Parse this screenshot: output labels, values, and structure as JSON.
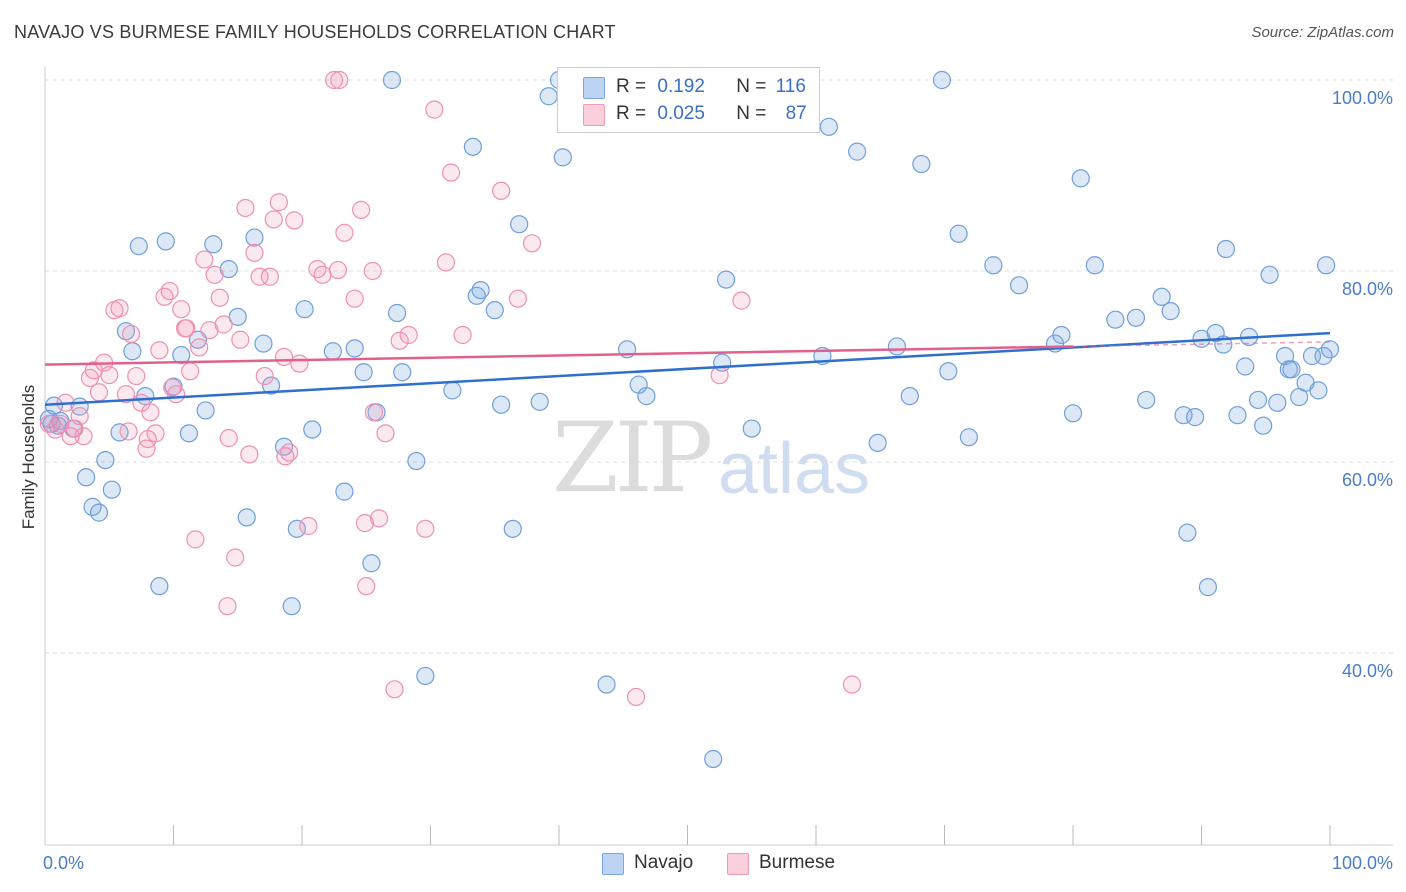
{
  "title": "NAVAJO VS BURMESE FAMILY HOUSEHOLDS CORRELATION CHART",
  "source": "Source: ZipAtlas.com",
  "watermark": {
    "zip": "ZIP",
    "atlas": "atlas"
  },
  "legend": {
    "rows": [
      {
        "r_label": "R =",
        "r_value": "0.192",
        "n_label": "N =",
        "n_value": "116",
        "color": "#7aa5e0",
        "fill": "#bcd3f3"
      },
      {
        "r_label": "R =",
        "r_value": "0.025",
        "n_label": "N =",
        "n_value": "87",
        "color": "#f09ab6",
        "fill": "#fbcfdc"
      }
    ]
  },
  "bottom_legend": [
    "Navajo",
    "Burmese"
  ],
  "chart_data": {
    "type": "scatter",
    "title": "NAVAJO VS BURMESE FAMILY HOUSEHOLDS CORRELATION CHART",
    "xlabel": "",
    "ylabel": "Family Households",
    "xlim": [
      0,
      100
    ],
    "ylim": [
      20,
      102
    ],
    "x_tick_labels": [
      "0.0%",
      "100.0%"
    ],
    "y_tick_labels": [
      "40.0%",
      "60.0%",
      "80.0%",
      "100.0%"
    ],
    "y_ticks": [
      40,
      60,
      80,
      100
    ],
    "grid": true,
    "colors": {
      "navajo_stroke": "#6f9fdc",
      "navajo_fill": "rgba(120,165,225,0.25)",
      "navajo_line": "#2f6fce",
      "burmese_stroke": "#ef90b0",
      "burmese_fill": "rgba(240,150,180,0.22)",
      "burmese_line": "#e0608e"
    },
    "series": [
      {
        "name": "Navajo",
        "trend": {
          "x": [
            0,
            100
          ],
          "y": [
            66.0,
            73.5
          ]
        },
        "points": [
          [
            0.3,
            64.5
          ],
          [
            0.5,
            64.0
          ],
          [
            0.7,
            65.9
          ],
          [
            1.0,
            63.8
          ],
          [
            1.2,
            64.3
          ],
          [
            2.2,
            63.5
          ],
          [
            2.7,
            65.8
          ],
          [
            3.2,
            58.4
          ],
          [
            3.7,
            55.3
          ],
          [
            4.2,
            54.7
          ],
          [
            4.7,
            60.2
          ],
          [
            5.2,
            57.1
          ],
          [
            5.8,
            63.1
          ],
          [
            6.3,
            73.7
          ],
          [
            6.8,
            71.6
          ],
          [
            7.3,
            82.6
          ],
          [
            7.8,
            66.9
          ],
          [
            8.9,
            47.0
          ],
          [
            9.4,
            83.1
          ],
          [
            10.0,
            67.9
          ],
          [
            10.6,
            71.2
          ],
          [
            11.2,
            63.0
          ],
          [
            11.9,
            72.8
          ],
          [
            12.5,
            65.4
          ],
          [
            13.1,
            82.8
          ],
          [
            14.3,
            80.2
          ],
          [
            15.0,
            75.2
          ],
          [
            15.7,
            54.2
          ],
          [
            16.3,
            83.5
          ],
          [
            17.0,
            72.4
          ],
          [
            17.6,
            68.0
          ],
          [
            18.6,
            61.6
          ],
          [
            19.2,
            44.9
          ],
          [
            19.6,
            53.0
          ],
          [
            20.2,
            76.0
          ],
          [
            20.8,
            63.4
          ],
          [
            22.4,
            71.6
          ],
          [
            23.3,
            56.9
          ],
          [
            24.1,
            71.9
          ],
          [
            24.8,
            69.4
          ],
          [
            25.4,
            49.4
          ],
          [
            25.8,
            65.2
          ],
          [
            27.0,
            100.0
          ],
          [
            27.4,
            75.6
          ],
          [
            27.8,
            69.4
          ],
          [
            28.9,
            60.1
          ],
          [
            29.6,
            37.6
          ],
          [
            31.7,
            67.5
          ],
          [
            33.6,
            77.4
          ],
          [
            33.9,
            78.0
          ],
          [
            35.0,
            75.9
          ],
          [
            35.5,
            66.0
          ],
          [
            36.4,
            53.0
          ],
          [
            36.9,
            84.9
          ],
          [
            38.5,
            66.3
          ],
          [
            39.2,
            98.3
          ],
          [
            40.3,
            91.9
          ],
          [
            43.7,
            36.7
          ],
          [
            45.3,
            71.8
          ],
          [
            46.2,
            68.1
          ],
          [
            46.8,
            66.9
          ],
          [
            52.0,
            28.9
          ],
          [
            52.7,
            70.4
          ],
          [
            53.0,
            79.1
          ],
          [
            55.0,
            63.5
          ],
          [
            57.8,
            100.0
          ],
          [
            60.5,
            71.1
          ],
          [
            61.0,
            95.1
          ],
          [
            63.2,
            92.5
          ],
          [
            64.8,
            62.0
          ],
          [
            66.3,
            72.1
          ],
          [
            67.3,
            66.9
          ],
          [
            68.2,
            91.2
          ],
          [
            69.8,
            100.0
          ],
          [
            70.3,
            69.5
          ],
          [
            71.1,
            83.9
          ],
          [
            71.9,
            62.6
          ],
          [
            73.8,
            80.6
          ],
          [
            75.8,
            78.5
          ],
          [
            78.6,
            72.4
          ],
          [
            79.1,
            73.3
          ],
          [
            80.0,
            65.1
          ],
          [
            80.6,
            89.7
          ],
          [
            81.7,
            80.6
          ],
          [
            83.3,
            74.9
          ],
          [
            84.9,
            75.1
          ],
          [
            85.7,
            66.5
          ],
          [
            86.9,
            77.3
          ],
          [
            87.6,
            75.8
          ],
          [
            88.6,
            64.9
          ],
          [
            88.9,
            52.6
          ],
          [
            89.5,
            64.7
          ],
          [
            90.0,
            72.9
          ],
          [
            90.5,
            46.9
          ],
          [
            91.1,
            73.5
          ],
          [
            91.7,
            72.3
          ],
          [
            91.9,
            82.3
          ],
          [
            92.8,
            64.9
          ],
          [
            93.4,
            70.0
          ],
          [
            93.7,
            73.1
          ],
          [
            94.4,
            66.5
          ],
          [
            94.8,
            63.8
          ],
          [
            95.3,
            79.6
          ],
          [
            95.9,
            66.2
          ],
          [
            96.5,
            71.1
          ],
          [
            96.8,
            69.7
          ],
          [
            97.0,
            69.7
          ],
          [
            97.6,
            66.8
          ],
          [
            98.1,
            68.3
          ],
          [
            98.6,
            71.1
          ],
          [
            99.1,
            67.5
          ],
          [
            99.5,
            71.1
          ],
          [
            99.7,
            80.6
          ],
          [
            100.0,
            71.8
          ],
          [
            33.3,
            93.0
          ],
          [
            40.0,
            100.0
          ]
        ]
      },
      {
        "name": "Burmese",
        "trend": {
          "x": [
            0,
            80
          ],
          "y": [
            70.2,
            72.1
          ]
        },
        "points": [
          [
            0.3,
            64.0
          ],
          [
            0.8,
            63.4
          ],
          [
            1.2,
            64.0
          ],
          [
            1.6,
            66.2
          ],
          [
            2.0,
            62.7
          ],
          [
            2.3,
            63.5
          ],
          [
            2.7,
            64.8
          ],
          [
            3.0,
            62.7
          ],
          [
            3.5,
            68.8
          ],
          [
            3.8,
            69.6
          ],
          [
            4.2,
            67.3
          ],
          [
            4.6,
            70.4
          ],
          [
            5.0,
            69.1
          ],
          [
            5.4,
            75.9
          ],
          [
            5.8,
            76.1
          ],
          [
            6.3,
            67.1
          ],
          [
            6.7,
            73.4
          ],
          [
            7.1,
            69.0
          ],
          [
            7.5,
            66.2
          ],
          [
            7.9,
            61.4
          ],
          [
            8.2,
            65.2
          ],
          [
            8.6,
            63.0
          ],
          [
            8.9,
            71.7
          ],
          [
            9.3,
            77.3
          ],
          [
            9.7,
            77.9
          ],
          [
            10.2,
            67.1
          ],
          [
            10.6,
            76.0
          ],
          [
            10.9,
            74.0
          ],
          [
            11.3,
            69.5
          ],
          [
            11.7,
            51.9
          ],
          [
            12.0,
            72.0
          ],
          [
            12.4,
            81.2
          ],
          [
            12.8,
            73.8
          ],
          [
            13.2,
            79.6
          ],
          [
            13.6,
            77.2
          ],
          [
            13.9,
            74.4
          ],
          [
            14.3,
            62.5
          ],
          [
            14.8,
            50.0
          ],
          [
            15.2,
            72.8
          ],
          [
            15.6,
            86.6
          ],
          [
            15.9,
            60.8
          ],
          [
            16.3,
            81.9
          ],
          [
            16.7,
            79.4
          ],
          [
            17.1,
            69.0
          ],
          [
            17.5,
            79.4
          ],
          [
            17.8,
            85.4
          ],
          [
            18.2,
            87.2
          ],
          [
            18.6,
            71.0
          ],
          [
            19.0,
            61.0
          ],
          [
            19.4,
            85.3
          ],
          [
            19.8,
            70.3
          ],
          [
            20.5,
            53.3
          ],
          [
            21.2,
            80.2
          ],
          [
            21.6,
            79.6
          ],
          [
            22.8,
            80.1
          ],
          [
            23.3,
            84.0
          ],
          [
            24.1,
            77.1
          ],
          [
            24.6,
            86.4
          ],
          [
            25.0,
            47.0
          ],
          [
            25.5,
            80.0
          ],
          [
            26.0,
            54.1
          ],
          [
            26.5,
            63.0
          ],
          [
            27.2,
            36.2
          ],
          [
            27.6,
            72.7
          ],
          [
            28.3,
            73.3
          ],
          [
            29.6,
            53.0
          ],
          [
            30.3,
            96.9
          ],
          [
            31.2,
            80.9
          ],
          [
            31.6,
            90.3
          ],
          [
            32.5,
            73.3
          ],
          [
            35.5,
            88.4
          ],
          [
            36.8,
            77.1
          ],
          [
            37.9,
            82.9
          ],
          [
            46.0,
            35.4
          ],
          [
            52.5,
            69.1
          ],
          [
            54.2,
            76.9
          ],
          [
            62.8,
            36.7
          ],
          [
            25.6,
            65.2
          ],
          [
            24.9,
            53.6
          ],
          [
            22.5,
            100.0
          ],
          [
            22.9,
            100.0
          ],
          [
            9.9,
            67.8
          ],
          [
            8.0,
            62.4
          ],
          [
            14.2,
            44.9
          ],
          [
            18.7,
            60.6
          ],
          [
            11.0,
            74.0
          ],
          [
            6.5,
            63.2
          ]
        ]
      }
    ]
  }
}
